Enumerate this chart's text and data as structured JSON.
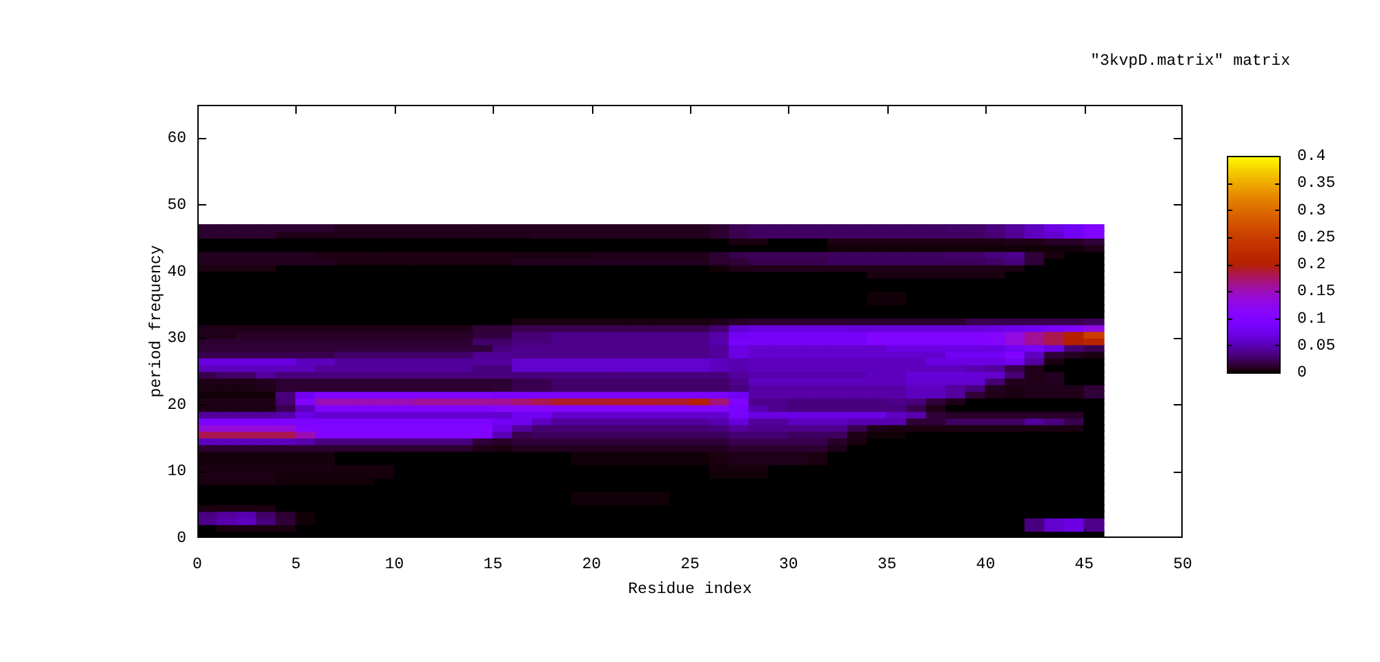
{
  "chart_data": {
    "type": "heatmap",
    "title": "\"3kvpD.matrix\" matrix",
    "xlabel": "Residue index",
    "ylabel": "period frequency",
    "xlim": [
      0,
      50
    ],
    "xticks": [
      0,
      5,
      10,
      15,
      20,
      25,
      30,
      35,
      40,
      45,
      50
    ],
    "ylim": [
      0,
      65
    ],
    "yticks": [
      0,
      10,
      20,
      30,
      40,
      50,
      60
    ],
    "clim": [
      0,
      0.4
    ],
    "cticks": [
      0,
      0.05,
      0.1,
      0.15,
      0.2,
      0.25,
      0.3,
      0.35,
      0.4
    ],
    "x": [
      0.5,
      1.5,
      2.5,
      3.5,
      4.5,
      5.5,
      6.5,
      7.5,
      8.5,
      9.5,
      10.5,
      11.5,
      12.5,
      13.5,
      14.5,
      15.5,
      16.5,
      17.5,
      18.5,
      19.5,
      20.5,
      21.5,
      22.5,
      23.5,
      24.5,
      25.5,
      26.5,
      27.5,
      28.5,
      29.5,
      30.5,
      31.5,
      32.5,
      33.5,
      34.5,
      35.5,
      36.5,
      37.5,
      38.5,
      39.5,
      40.5,
      41.5,
      42.5,
      43.5,
      44.5,
      45.5
    ],
    "y": [
      46.5,
      45.5,
      44.5,
      43.5,
      42.5,
      41.5,
      40.5,
      39.5,
      38.5,
      37.5,
      36.5,
      35.5,
      34.5,
      33.5,
      32.5,
      31.5,
      30.5,
      29.5,
      28.5,
      27.5,
      26.5,
      25.5,
      24.5,
      23.5,
      22.5,
      21.5,
      20.5,
      19.5,
      18.5,
      17.5,
      16.5,
      15.5,
      14.5,
      13.5,
      12.5,
      11.5,
      10.5,
      9.5,
      8.5,
      7.5,
      6.5,
      5.5,
      4.5,
      3.5,
      2.5,
      1.5,
      0.5
    ],
    "cells": [
      [
        0.012,
        0.012,
        0.012,
        0.012,
        0.012,
        0.012,
        0.012,
        0.008,
        0.008,
        0.008,
        0.008,
        0.008,
        0.008,
        0.008,
        0.008,
        0.008,
        0.008,
        0.008,
        0.008,
        0.008,
        0.008,
        0.008,
        0.008,
        0.008,
        0.008,
        0.008,
        0.012,
        0.022,
        0.025,
        0.025,
        0.025,
        0.025,
        0.025,
        0.025,
        0.025,
        0.025,
        0.025,
        0.025,
        0.027,
        0.027,
        0.033,
        0.042,
        0.054,
        0.07,
        0.08,
        0.1
      ],
      [
        0.012,
        0.012,
        0.012,
        0.012,
        0.006,
        0.006,
        0.006,
        0.006,
        0.006,
        0.006,
        0.006,
        0.006,
        0.006,
        0.006,
        0.006,
        0.006,
        0.006,
        0.008,
        0.008,
        0.008,
        0.008,
        0.008,
        0.008,
        0.008,
        0.008,
        0.008,
        0.012,
        0.02,
        0.025,
        0.025,
        0.025,
        0.025,
        0.025,
        0.025,
        0.025,
        0.025,
        0.025,
        0.025,
        0.025,
        0.025,
        0.03,
        0.04,
        0.054,
        0.06,
        0.08,
        0.1
      ],
      [
        0,
        0,
        0,
        0,
        0,
        0,
        0,
        0,
        0,
        0,
        0,
        0,
        0,
        0,
        0,
        0,
        0,
        0,
        0,
        0,
        0,
        0,
        0,
        0,
        0,
        0,
        0,
        0.004,
        0.004,
        0,
        0,
        0,
        0.004,
        0.004,
        0.004,
        0.004,
        0.004,
        0.004,
        0.004,
        0.004,
        0.004,
        0.006,
        0.006,
        0.01,
        0.01,
        0.014
      ],
      [
        0,
        0,
        0,
        0,
        0,
        0,
        0,
        0,
        0,
        0,
        0,
        0,
        0,
        0,
        0,
        0,
        0,
        0,
        0,
        0,
        0,
        0,
        0,
        0,
        0,
        0,
        0,
        0,
        0,
        0,
        0,
        0,
        0.002,
        0.002,
        0.002,
        0.002,
        0.002,
        0.002,
        0.002,
        0.002,
        0.002,
        0.002,
        0.002,
        0.002,
        0.002,
        0.006
      ],
      [
        0.008,
        0.008,
        0.008,
        0.008,
        0.008,
        0.008,
        0.005,
        0.005,
        0.005,
        0.005,
        0.005,
        0.005,
        0.005,
        0.005,
        0.005,
        0.005,
        0.004,
        0.004,
        0.004,
        0.004,
        0.006,
        0.006,
        0.006,
        0.006,
        0.006,
        0.006,
        0.012,
        0.02,
        0.022,
        0.022,
        0.022,
        0.022,
        0.024,
        0.024,
        0.024,
        0.024,
        0.024,
        0.024,
        0.027,
        0.027,
        0.033,
        0.037,
        0.014,
        0.004,
        0,
        0
      ],
      [
        0.008,
        0.008,
        0.008,
        0.008,
        0.008,
        0.008,
        0.008,
        0.004,
        0.004,
        0.004,
        0.004,
        0.004,
        0.004,
        0.004,
        0.004,
        0.004,
        0.008,
        0.008,
        0.008,
        0.008,
        0.008,
        0.008,
        0.008,
        0.008,
        0.008,
        0.008,
        0.012,
        0.014,
        0.02,
        0.02,
        0.02,
        0.02,
        0.024,
        0.024,
        0.024,
        0.024,
        0.024,
        0.024,
        0.024,
        0.024,
        0.027,
        0.033,
        0.014,
        0,
        0,
        0
      ],
      [
        0.004,
        0.004,
        0.004,
        0.004,
        0,
        0,
        0,
        0,
        0,
        0,
        0,
        0,
        0,
        0,
        0,
        0,
        0,
        0,
        0,
        0,
        0,
        0,
        0,
        0,
        0,
        0,
        0.002,
        0.006,
        0.006,
        0.006,
        0.006,
        0.006,
        0.006,
        0.006,
        0.006,
        0.006,
        0.006,
        0.006,
        0.006,
        0.006,
        0.006,
        0.004,
        0,
        0,
        0,
        0
      ],
      [
        0,
        0,
        0,
        0,
        0,
        0,
        0,
        0,
        0,
        0,
        0,
        0,
        0,
        0,
        0,
        0,
        0,
        0,
        0,
        0,
        0,
        0,
        0,
        0,
        0,
        0,
        0,
        0,
        0,
        0,
        0,
        0,
        0,
        0,
        0.004,
        0.004,
        0.004,
        0.004,
        0.004,
        0.004,
        0.004,
        0,
        0,
        0,
        0,
        0
      ],
      [
        0,
        0,
        0,
        0,
        0,
        0,
        0,
        0,
        0,
        0,
        0,
        0,
        0,
        0,
        0,
        0,
        0,
        0,
        0,
        0,
        0,
        0,
        0,
        0,
        0,
        0,
        0,
        0,
        0,
        0,
        0,
        0,
        0,
        0,
        0,
        0,
        0,
        0,
        0,
        0,
        0,
        0,
        0,
        0,
        0,
        0
      ],
      [
        0,
        0,
        0,
        0,
        0,
        0,
        0,
        0,
        0,
        0,
        0,
        0,
        0,
        0,
        0,
        0,
        0,
        0,
        0,
        0,
        0,
        0,
        0,
        0,
        0,
        0,
        0,
        0,
        0,
        0,
        0,
        0,
        0,
        0,
        0,
        0,
        0,
        0,
        0,
        0,
        0,
        0,
        0,
        0,
        0,
        0
      ],
      [
        0,
        0,
        0,
        0,
        0,
        0,
        0,
        0,
        0,
        0,
        0,
        0,
        0,
        0,
        0,
        0,
        0,
        0,
        0,
        0,
        0,
        0,
        0,
        0,
        0,
        0,
        0,
        0,
        0,
        0,
        0,
        0,
        0,
        0,
        0.002,
        0.002,
        0,
        0,
        0,
        0,
        0,
        0,
        0,
        0,
        0,
        0
      ],
      [
        0,
        0,
        0,
        0,
        0,
        0,
        0,
        0,
        0,
        0,
        0,
        0,
        0,
        0,
        0,
        0,
        0,
        0,
        0,
        0,
        0,
        0,
        0,
        0,
        0,
        0,
        0,
        0,
        0,
        0,
        0,
        0,
        0,
        0,
        0.002,
        0.002,
        0,
        0,
        0,
        0,
        0,
        0,
        0,
        0,
        0,
        0
      ],
      [
        0,
        0,
        0,
        0,
        0,
        0,
        0,
        0,
        0,
        0,
        0,
        0,
        0,
        0,
        0,
        0,
        0,
        0,
        0,
        0,
        0,
        0,
        0,
        0,
        0,
        0,
        0,
        0,
        0,
        0,
        0,
        0,
        0,
        0,
        0,
        0,
        0,
        0,
        0,
        0,
        0,
        0,
        0,
        0,
        0,
        0
      ],
      [
        0,
        0,
        0,
        0,
        0,
        0,
        0,
        0,
        0,
        0,
        0,
        0,
        0,
        0,
        0,
        0,
        0,
        0,
        0,
        0,
        0,
        0,
        0,
        0,
        0,
        0,
        0,
        0,
        0,
        0,
        0,
        0,
        0,
        0,
        0,
        0,
        0,
        0,
        0,
        0,
        0,
        0,
        0,
        0,
        0,
        0
      ],
      [
        0,
        0,
        0,
        0,
        0,
        0,
        0,
        0,
        0,
        0,
        0,
        0,
        0,
        0,
        0,
        0,
        0.004,
        0.004,
        0.004,
        0.004,
        0.004,
        0.004,
        0.004,
        0.004,
        0.004,
        0.004,
        0.006,
        0.01,
        0.012,
        0.012,
        0.012,
        0.012,
        0.012,
        0.012,
        0.012,
        0.012,
        0.012,
        0.012,
        0.012,
        0.02,
        0.02,
        0.02,
        0.02,
        0.02,
        0.02,
        0.024
      ],
      [
        0.006,
        0.006,
        0.006,
        0.006,
        0.006,
        0.006,
        0.006,
        0.006,
        0.006,
        0.006,
        0.006,
        0.006,
        0.006,
        0.006,
        0.014,
        0.014,
        0.02,
        0.02,
        0.02,
        0.02,
        0.02,
        0.02,
        0.02,
        0.02,
        0.02,
        0.02,
        0.03,
        0.06,
        0.07,
        0.07,
        0.07,
        0.07,
        0.07,
        0.065,
        0.065,
        0.065,
        0.065,
        0.065,
        0.065,
        0.065,
        0.07,
        0.075,
        0.08,
        0.09,
        0.1,
        0.13
      ],
      [
        0.006,
        0.006,
        0.01,
        0.01,
        0.01,
        0.01,
        0.01,
        0.01,
        0.01,
        0.01,
        0.01,
        0.01,
        0.01,
        0.01,
        0.016,
        0.016,
        0.03,
        0.03,
        0.037,
        0.037,
        0.037,
        0.037,
        0.037,
        0.037,
        0.037,
        0.037,
        0.045,
        0.08,
        0.085,
        0.085,
        0.085,
        0.085,
        0.085,
        0.085,
        0.1,
        0.1,
        0.1,
        0.1,
        0.1,
        0.1,
        0.11,
        0.13,
        0.16,
        0.18,
        0.2,
        0.25
      ],
      [
        0.012,
        0.012,
        0.012,
        0.012,
        0.012,
        0.012,
        0.012,
        0.012,
        0.012,
        0.012,
        0.012,
        0.012,
        0.012,
        0.012,
        0.027,
        0.027,
        0.033,
        0.033,
        0.037,
        0.037,
        0.037,
        0.037,
        0.037,
        0.037,
        0.037,
        0.037,
        0.048,
        0.09,
        0.085,
        0.085,
        0.085,
        0.085,
        0.085,
        0.085,
        0.1,
        0.1,
        0.1,
        0.1,
        0.1,
        0.1,
        0.105,
        0.135,
        0.16,
        0.18,
        0.2,
        0.21
      ],
      [
        0.014,
        0.014,
        0.014,
        0.014,
        0.014,
        0.014,
        0.014,
        0.014,
        0.014,
        0.014,
        0.014,
        0.014,
        0.014,
        0.014,
        0.014,
        0.033,
        0.037,
        0.037,
        0.037,
        0.037,
        0.037,
        0.037,
        0.037,
        0.037,
        0.037,
        0.037,
        0.042,
        0.07,
        0.06,
        0.06,
        0.06,
        0.06,
        0.06,
        0.06,
        0.06,
        0.07,
        0.07,
        0.07,
        0.07,
        0.07,
        0.07,
        0.08,
        0.09,
        0.07,
        0.03,
        0.02
      ],
      [
        0.02,
        0.02,
        0.02,
        0.02,
        0.02,
        0.02,
        0.02,
        0.027,
        0.027,
        0.027,
        0.027,
        0.027,
        0.027,
        0.027,
        0.04,
        0.04,
        0.037,
        0.037,
        0.037,
        0.037,
        0.037,
        0.037,
        0.037,
        0.037,
        0.037,
        0.037,
        0.042,
        0.07,
        0.06,
        0.06,
        0.06,
        0.06,
        0.06,
        0.06,
        0.06,
        0.06,
        0.06,
        0.06,
        0.08,
        0.08,
        0.08,
        0.1,
        0.054,
        0.014,
        0.008,
        0.004
      ],
      [
        0.07,
        0.07,
        0.07,
        0.07,
        0.07,
        0.054,
        0.054,
        0.042,
        0.042,
        0.042,
        0.042,
        0.042,
        0.042,
        0.042,
        0.042,
        0.042,
        0.06,
        0.06,
        0.06,
        0.06,
        0.06,
        0.06,
        0.06,
        0.06,
        0.06,
        0.06,
        0.054,
        0.048,
        0.054,
        0.054,
        0.054,
        0.054,
        0.054,
        0.054,
        0.054,
        0.054,
        0.054,
        0.07,
        0.07,
        0.07,
        0.07,
        0.08,
        0.042,
        0.004,
        0,
        0
      ],
      [
        0.054,
        0.054,
        0.054,
        0.054,
        0.054,
        0.054,
        0.042,
        0.042,
        0.042,
        0.042,
        0.042,
        0.042,
        0.042,
        0.042,
        0.033,
        0.033,
        0.06,
        0.06,
        0.06,
        0.06,
        0.06,
        0.06,
        0.06,
        0.06,
        0.06,
        0.06,
        0.054,
        0.048,
        0.054,
        0.054,
        0.054,
        0.054,
        0.054,
        0.054,
        0.054,
        0.054,
        0.054,
        0.054,
        0.054,
        0.048,
        0.042,
        0.02,
        0.006,
        0,
        0,
        0
      ],
      [
        0.02,
        0.027,
        0.027,
        0.042,
        0.033,
        0.033,
        0.033,
        0.033,
        0.033,
        0.033,
        0.033,
        0.033,
        0.033,
        0.033,
        0.033,
        0.033,
        0.033,
        0.033,
        0.033,
        0.033,
        0.033,
        0.033,
        0.033,
        0.033,
        0.033,
        0.033,
        0.033,
        0.042,
        0.048,
        0.048,
        0.048,
        0.048,
        0.048,
        0.048,
        0.054,
        0.054,
        0.065,
        0.065,
        0.065,
        0.065,
        0.06,
        0.03,
        0.006,
        0.008,
        0,
        0
      ],
      [
        0.006,
        0.006,
        0.006,
        0.008,
        0.012,
        0.012,
        0.012,
        0.012,
        0.012,
        0.012,
        0.012,
        0.012,
        0.012,
        0.012,
        0.012,
        0.012,
        0.02,
        0.02,
        0.027,
        0.027,
        0.027,
        0.027,
        0.027,
        0.027,
        0.027,
        0.027,
        0.027,
        0.037,
        0.054,
        0.054,
        0.054,
        0.054,
        0.054,
        0.054,
        0.054,
        0.054,
        0.06,
        0.06,
        0.06,
        0.06,
        0.03,
        0.008,
        0.006,
        0.008,
        0,
        0
      ],
      [
        0.004,
        0.004,
        0.004,
        0.006,
        0.012,
        0.012,
        0.012,
        0.012,
        0.012,
        0.012,
        0.012,
        0.012,
        0.012,
        0.012,
        0.012,
        0.014,
        0.02,
        0.02,
        0.027,
        0.027,
        0.027,
        0.027,
        0.027,
        0.027,
        0.027,
        0.027,
        0.027,
        0.033,
        0.045,
        0.045,
        0.045,
        0.045,
        0.045,
        0.045,
        0.045,
        0.045,
        0.054,
        0.054,
        0.042,
        0.033,
        0.008,
        0.004,
        0.006,
        0.006,
        0.006,
        0.014
      ],
      [
        0.002,
        0.002,
        0.002,
        0.002,
        0.033,
        0.08,
        0.1,
        0.1,
        0.1,
        0.1,
        0.1,
        0.1,
        0.1,
        0.1,
        0.1,
        0.095,
        0.095,
        0.095,
        0.095,
        0.095,
        0.095,
        0.095,
        0.095,
        0.095,
        0.095,
        0.095,
        0.095,
        0.08,
        0.045,
        0.045,
        0.045,
        0.045,
        0.045,
        0.045,
        0.045,
        0.045,
        0.054,
        0.054,
        0.042,
        0.014,
        0.006,
        0.004,
        0.006,
        0.006,
        0.006,
        0.014
      ],
      [
        0.006,
        0.006,
        0.006,
        0.006,
        0.03,
        0.1,
        0.15,
        0.15,
        0.15,
        0.15,
        0.15,
        0.16,
        0.16,
        0.16,
        0.16,
        0.16,
        0.17,
        0.18,
        0.19,
        0.19,
        0.19,
        0.19,
        0.19,
        0.19,
        0.19,
        0.2,
        0.17,
        0.1,
        0.037,
        0.037,
        0.033,
        0.033,
        0.033,
        0.033,
        0.033,
        0.037,
        0.033,
        0.014,
        0.006,
        0,
        0,
        0,
        0,
        0,
        0,
        0
      ],
      [
        0.005,
        0.005,
        0.005,
        0.005,
        0.02,
        0.054,
        0.1,
        0.1,
        0.1,
        0.1,
        0.1,
        0.1,
        0.1,
        0.1,
        0.1,
        0.11,
        0.11,
        0.11,
        0.105,
        0.105,
        0.105,
        0.105,
        0.105,
        0.105,
        0.105,
        0.105,
        0.105,
        0.09,
        0.048,
        0.037,
        0.033,
        0.033,
        0.033,
        0.033,
        0.033,
        0.033,
        0.02,
        0.006,
        0,
        0,
        0,
        0,
        0,
        0,
        0,
        0
      ],
      [
        0.042,
        0.042,
        0.042,
        0.042,
        0.048,
        0.07,
        0.06,
        0.06,
        0.06,
        0.06,
        0.06,
        0.06,
        0.06,
        0.06,
        0.06,
        0.06,
        0.08,
        0.08,
        0.06,
        0.06,
        0.06,
        0.06,
        0.06,
        0.06,
        0.06,
        0.06,
        0.06,
        0.09,
        0.07,
        0.07,
        0.07,
        0.07,
        0.07,
        0.07,
        0.07,
        0.054,
        0.048,
        0.014,
        0.01,
        0.01,
        0.01,
        0.01,
        0.01,
        0.01,
        0.01,
        0
      ],
      [
        0.095,
        0.095,
        0.095,
        0.095,
        0.095,
        0.095,
        0.095,
        0.095,
        0.095,
        0.095,
        0.095,
        0.095,
        0.095,
        0.095,
        0.095,
        0.08,
        0.075,
        0.054,
        0.042,
        0.042,
        0.042,
        0.042,
        0.042,
        0.042,
        0.042,
        0.042,
        0.048,
        0.065,
        0.042,
        0.042,
        0.054,
        0.054,
        0.054,
        0.048,
        0.048,
        0.048,
        0.014,
        0.014,
        0.025,
        0.025,
        0.025,
        0.025,
        0.042,
        0.033,
        0.02,
        0
      ],
      [
        0.135,
        0.135,
        0.135,
        0.135,
        0.135,
        0.105,
        0.1,
        0.1,
        0.1,
        0.1,
        0.1,
        0.1,
        0.1,
        0.1,
        0.1,
        0.07,
        0.042,
        0.03,
        0.03,
        0.03,
        0.03,
        0.03,
        0.03,
        0.03,
        0.03,
        0.03,
        0.033,
        0.042,
        0.037,
        0.037,
        0.037,
        0.037,
        0.037,
        0.02,
        0.006,
        0.004,
        0.004,
        0.004,
        0.004,
        0.004,
        0.004,
        0.004,
        0.004,
        0.004,
        0.004,
        0
      ],
      [
        0.18,
        0.18,
        0.18,
        0.18,
        0.18,
        0.15,
        0.105,
        0.105,
        0.105,
        0.105,
        0.105,
        0.105,
        0.105,
        0.105,
        0.1,
        0.05,
        0.02,
        0.024,
        0.024,
        0.024,
        0.024,
        0.024,
        0.024,
        0.024,
        0.024,
        0.024,
        0.024,
        0.03,
        0.03,
        0.03,
        0.024,
        0.024,
        0.024,
        0.006,
        0.002,
        0.002,
        0,
        0,
        0,
        0,
        0,
        0,
        0,
        0,
        0,
        0
      ],
      [
        0.054,
        0.054,
        0.054,
        0.054,
        0.054,
        0.048,
        0.033,
        0.033,
        0.033,
        0.033,
        0.033,
        0.033,
        0.033,
        0.033,
        0.014,
        0.01,
        0.014,
        0.014,
        0.014,
        0.014,
        0.014,
        0.014,
        0.014,
        0.014,
        0.014,
        0.014,
        0.014,
        0.02,
        0.02,
        0.02,
        0.02,
        0.02,
        0.01,
        0.004,
        0,
        0,
        0,
        0,
        0,
        0,
        0,
        0,
        0,
        0,
        0,
        0
      ],
      [
        0.012,
        0.012,
        0.012,
        0.012,
        0.012,
        0.012,
        0.012,
        0.012,
        0.012,
        0.012,
        0.012,
        0.012,
        0.012,
        0.012,
        0.006,
        0.004,
        0.008,
        0.008,
        0.008,
        0.008,
        0.008,
        0.008,
        0.008,
        0.008,
        0.008,
        0.008,
        0.008,
        0.012,
        0.012,
        0.012,
        0.012,
        0.012,
        0.006,
        0,
        0,
        0,
        0,
        0,
        0,
        0,
        0,
        0,
        0,
        0,
        0,
        0
      ],
      [
        0.003,
        0.003,
        0.003,
        0.003,
        0.003,
        0.003,
        0.003,
        0,
        0,
        0,
        0,
        0,
        0,
        0,
        0,
        0,
        0,
        0,
        0,
        0.002,
        0.002,
        0.002,
        0.002,
        0.002,
        0.002,
        0.002,
        0.004,
        0.006,
        0.006,
        0.006,
        0.006,
        0.004,
        0,
        0,
        0,
        0,
        0,
        0,
        0,
        0,
        0,
        0,
        0,
        0,
        0,
        0
      ],
      [
        0.003,
        0.003,
        0.003,
        0.003,
        0.003,
        0.003,
        0.003,
        0,
        0,
        0,
        0,
        0,
        0,
        0,
        0,
        0,
        0,
        0,
        0,
        0.002,
        0.002,
        0.002,
        0.002,
        0.002,
        0.002,
        0.002,
        0.004,
        0.006,
        0.006,
        0.006,
        0.006,
        0.004,
        0,
        0,
        0,
        0,
        0,
        0,
        0,
        0,
        0,
        0,
        0,
        0,
        0,
        0
      ],
      [
        0.004,
        0.004,
        0.004,
        0.004,
        0.004,
        0.004,
        0.004,
        0.003,
        0.003,
        0.003,
        0,
        0,
        0,
        0,
        0,
        0,
        0,
        0,
        0,
        0,
        0,
        0,
        0,
        0,
        0,
        0,
        0.003,
        0.003,
        0.003,
        0,
        0,
        0,
        0,
        0,
        0,
        0,
        0,
        0,
        0,
        0,
        0,
        0,
        0,
        0,
        0,
        0
      ],
      [
        0.005,
        0.005,
        0.005,
        0.005,
        0.003,
        0.003,
        0.003,
        0.003,
        0.003,
        0.003,
        0,
        0,
        0,
        0,
        0,
        0,
        0,
        0,
        0,
        0,
        0,
        0,
        0,
        0,
        0,
        0,
        0.002,
        0.002,
        0.002,
        0,
        0,
        0,
        0,
        0,
        0,
        0,
        0,
        0,
        0,
        0,
        0,
        0,
        0,
        0,
        0,
        0
      ],
      [
        0.004,
        0.004,
        0.004,
        0.004,
        0.002,
        0.002,
        0.002,
        0.002,
        0.002,
        0,
        0,
        0,
        0,
        0,
        0,
        0,
        0,
        0,
        0,
        0,
        0,
        0,
        0,
        0,
        0,
        0,
        0,
        0,
        0,
        0,
        0,
        0,
        0,
        0,
        0,
        0,
        0,
        0,
        0,
        0,
        0,
        0,
        0,
        0,
        0,
        0
      ],
      [
        0,
        0,
        0,
        0,
        0,
        0,
        0,
        0,
        0,
        0,
        0,
        0,
        0,
        0,
        0,
        0,
        0,
        0,
        0,
        0,
        0,
        0,
        0,
        0,
        0,
        0,
        0,
        0,
        0,
        0,
        0,
        0,
        0,
        0,
        0,
        0,
        0,
        0,
        0,
        0,
        0,
        0,
        0,
        0,
        0,
        0
      ],
      [
        0,
        0,
        0,
        0,
        0,
        0,
        0,
        0,
        0,
        0,
        0,
        0,
        0,
        0,
        0,
        0,
        0,
        0,
        0,
        0.002,
        0.002,
        0.002,
        0.002,
        0.002,
        0,
        0,
        0,
        0,
        0,
        0,
        0,
        0,
        0,
        0,
        0,
        0,
        0,
        0,
        0,
        0,
        0,
        0,
        0,
        0,
        0,
        0
      ],
      [
        0,
        0,
        0,
        0,
        0,
        0,
        0,
        0,
        0,
        0,
        0,
        0,
        0,
        0,
        0,
        0,
        0,
        0,
        0,
        0.002,
        0.002,
        0.002,
        0.002,
        0.002,
        0,
        0,
        0,
        0,
        0,
        0,
        0,
        0,
        0,
        0,
        0,
        0,
        0,
        0,
        0,
        0,
        0,
        0,
        0,
        0,
        0,
        0
      ],
      [
        0.004,
        0.004,
        0.004,
        0.004,
        0,
        0,
        0,
        0,
        0,
        0,
        0,
        0,
        0,
        0,
        0,
        0,
        0,
        0,
        0,
        0,
        0,
        0,
        0,
        0,
        0,
        0,
        0,
        0,
        0,
        0,
        0,
        0,
        0,
        0,
        0,
        0,
        0,
        0,
        0,
        0,
        0,
        0,
        0,
        0,
        0,
        0
      ],
      [
        0.033,
        0.042,
        0.048,
        0.027,
        0.012,
        0.002,
        0,
        0,
        0,
        0,
        0,
        0,
        0,
        0,
        0,
        0,
        0,
        0,
        0,
        0,
        0,
        0,
        0,
        0,
        0,
        0,
        0,
        0,
        0,
        0,
        0,
        0,
        0,
        0,
        0,
        0,
        0,
        0,
        0,
        0,
        0,
        0,
        0,
        0,
        0,
        0
      ],
      [
        0.037,
        0.048,
        0.054,
        0.033,
        0.014,
        0.002,
        0,
        0,
        0,
        0,
        0,
        0,
        0,
        0,
        0,
        0,
        0,
        0,
        0,
        0,
        0,
        0,
        0,
        0,
        0,
        0,
        0,
        0,
        0,
        0,
        0,
        0,
        0,
        0,
        0,
        0,
        0,
        0,
        0,
        0,
        0,
        0,
        0.033,
        0.06,
        0.07,
        0.037
      ],
      [
        0,
        0.004,
        0.004,
        0.004,
        0.004,
        0,
        0,
        0,
        0,
        0,
        0,
        0,
        0,
        0,
        0,
        0,
        0,
        0,
        0,
        0,
        0,
        0,
        0,
        0,
        0,
        0,
        0,
        0,
        0,
        0,
        0,
        0,
        0,
        0,
        0,
        0,
        0,
        0,
        0,
        0,
        0,
        0,
        0.033,
        0.06,
        0.07,
        0.037
      ],
      [
        0,
        0,
        0,
        0,
        0,
        0,
        0,
        0,
        0,
        0,
        0,
        0,
        0,
        0,
        0,
        0,
        0,
        0,
        0,
        0,
        0,
        0,
        0,
        0,
        0,
        0,
        0,
        0,
        0,
        0,
        0,
        0,
        0,
        0,
        0,
        0,
        0,
        0,
        0,
        0,
        0,
        0,
        0,
        0,
        0,
        0
      ]
    ]
  }
}
